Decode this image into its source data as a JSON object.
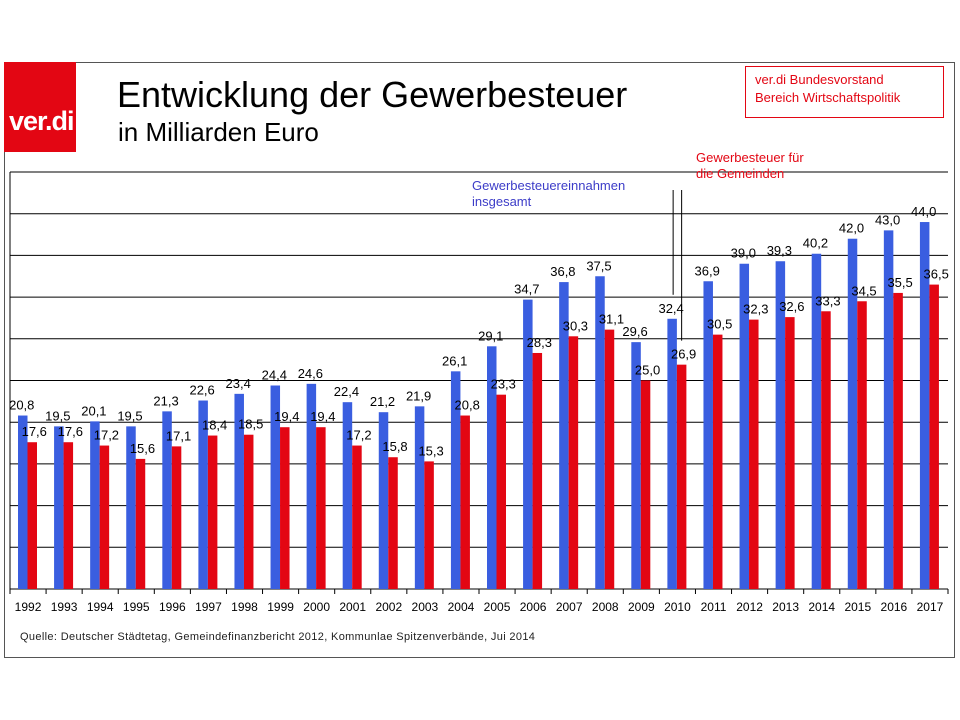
{
  "header": {
    "logo_text": "ver.di",
    "title": "Entwicklung der Gewerbesteuer",
    "subtitle": "in Milliarden Euro",
    "org_line1": "ver.di Bundesvorstand",
    "org_line2": "Bereich Wirtschaftspolitik"
  },
  "annotations": {
    "red_line1": "Gewerbesteuer für",
    "red_line2": "die Gemeinden",
    "blue_line1": "Gewerbesteuereinnahmen",
    "blue_line2": "insgesamt"
  },
  "source": "Quelle: Deutscher Städtetag, Gemeindefinanzbericht 2012, Kommunlae Spitzenverbände, Jui 2014",
  "colors": {
    "blue": "#3a5ee0",
    "red": "#e30613",
    "grid": "#000000",
    "accent": "#e30613"
  },
  "chart_data": {
    "type": "bar",
    "categories": [
      "1992",
      "1993",
      "1994",
      "1995",
      "1996",
      "1997",
      "1998",
      "1999",
      "2000",
      "2001",
      "2002",
      "2003",
      "2004",
      "2005",
      "2006",
      "2007",
      "2008",
      "2009",
      "2010",
      "2011",
      "2012",
      "2013",
      "2014",
      "2015",
      "2016",
      "2017"
    ],
    "series": [
      {
        "name": "Gewerbesteuereinnahmen insgesamt",
        "color": "#3a5ee0",
        "values": [
          20.8,
          19.5,
          20.1,
          19.5,
          21.3,
          22.6,
          23.4,
          24.4,
          24.6,
          22.4,
          21.2,
          21.9,
          26.1,
          29.1,
          34.7,
          36.8,
          37.5,
          29.6,
          32.4,
          36.9,
          39.0,
          39.3,
          40.2,
          42.0,
          43.0,
          44.0
        ],
        "labels": [
          "20,8",
          "19,5",
          "20,1",
          "19,5",
          "21,3",
          "22,6",
          "23,4",
          "24,4",
          "24,6",
          "22,4",
          "21,2",
          "21,9",
          "26,1",
          "29,1",
          "34,7",
          "36,8",
          "37,5",
          "29,6",
          "32,4",
          "36,9",
          "39,0",
          "39,3",
          "40,2",
          "42,0",
          "43,0",
          "44,0"
        ]
      },
      {
        "name": "Gewerbesteuer für die Gemeinden",
        "color": "#e30613",
        "values": [
          17.6,
          17.6,
          17.2,
          15.6,
          17.1,
          18.4,
          18.5,
          19.4,
          19.4,
          17.2,
          15.8,
          15.3,
          20.8,
          23.3,
          28.3,
          30.3,
          31.1,
          25.0,
          26.9,
          30.5,
          32.3,
          32.6,
          33.3,
          34.5,
          35.5,
          36.5
        ],
        "labels": [
          "17,6",
          "17,6",
          "17,2",
          "15,6",
          "17,1",
          "18,4",
          "18,5",
          "19,4",
          "19,4",
          "17,2",
          "15,8",
          "15,3",
          "20,8",
          "23,3",
          "28,3",
          "30,3",
          "31,1",
          "25,0",
          "26,9",
          "30,5",
          "32,3",
          "32,6",
          "33,3",
          "34,5",
          "35,5",
          "36,5"
        ]
      }
    ],
    "ylim": [
      0,
      50
    ],
    "grid": true,
    "legend": "annotations"
  }
}
